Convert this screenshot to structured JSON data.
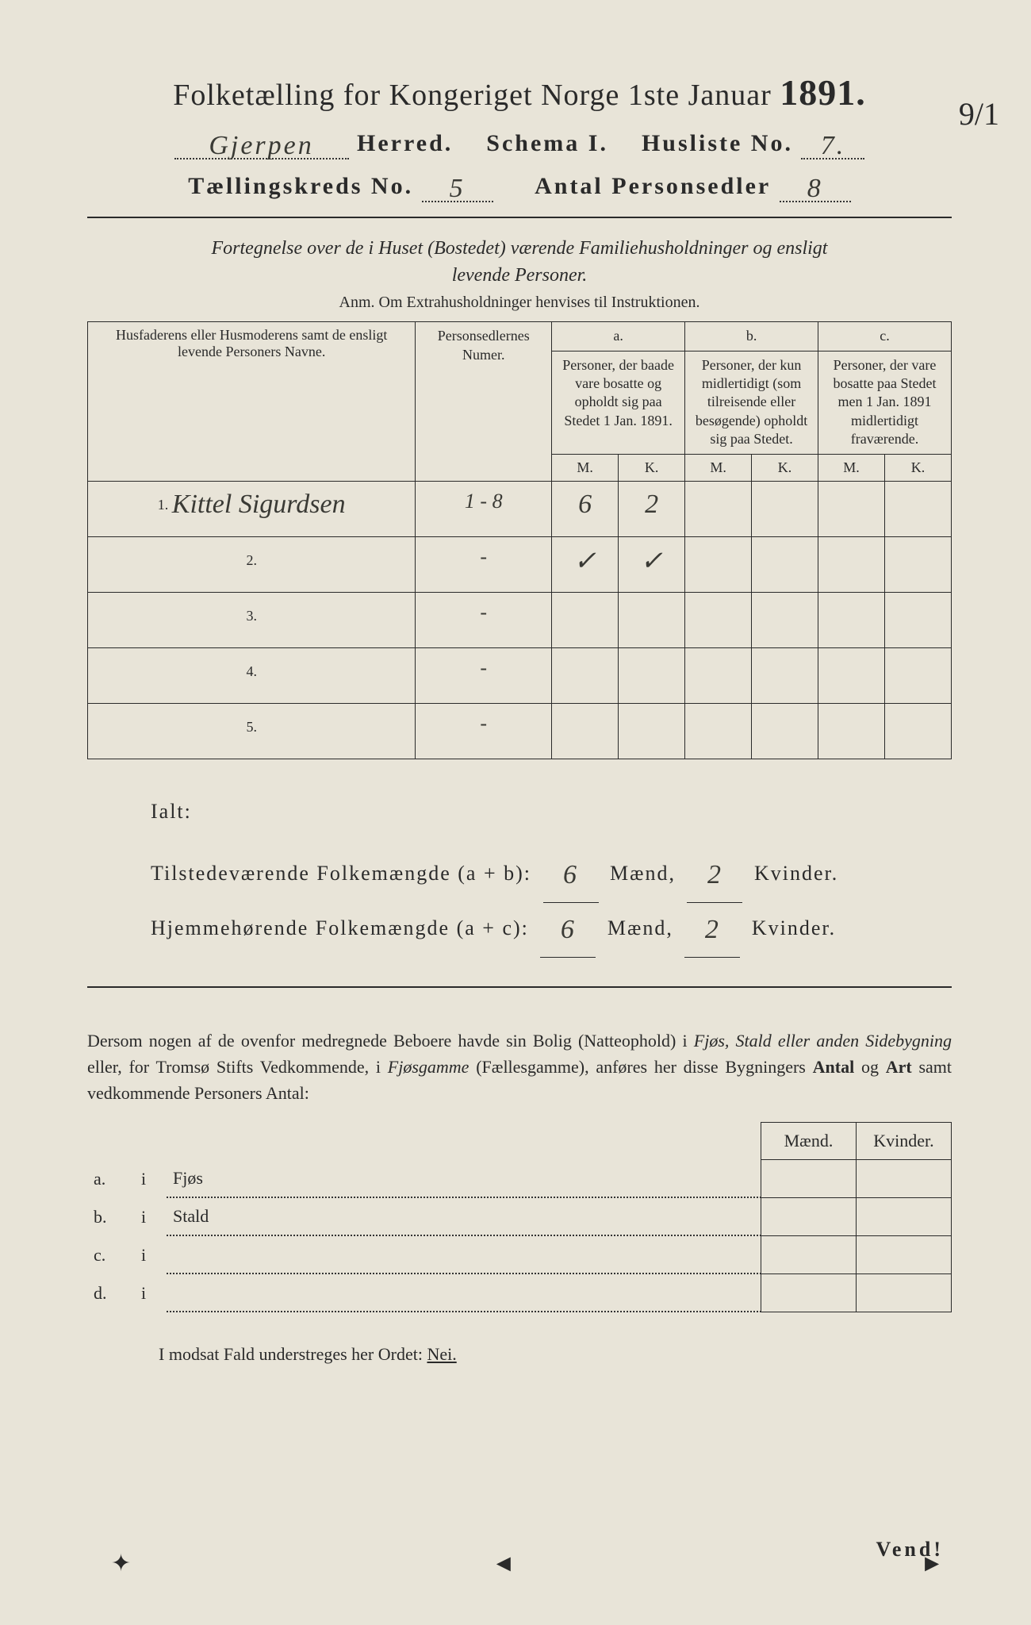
{
  "title": {
    "main": "Folketælling for Kongeriget Norge 1ste Januar",
    "year": "1891."
  },
  "header": {
    "herred_value": "Gjerpen",
    "herred_label": "Herred.",
    "schema_label": "Schema I.",
    "husliste_label": "Husliste No.",
    "husliste_value": "7.",
    "kreds_label": "Tællingskreds No.",
    "kreds_value": "5",
    "antal_label": "Antal Personsedler",
    "antal_value": "8",
    "margin_note": "9/1"
  },
  "desc_line1": "Fortegnelse over de i Huset (Bostedet) værende Familiehusholdninger og ensligt",
  "desc_line2": "levende Personer.",
  "anm": "Anm. Om Extrahusholdninger henvises til Instruktionen.",
  "table_headers": {
    "col1": "Husfaderens eller Husmoderens samt de ensligt levende Personers Navne.",
    "col2": "Personsedlernes Numer.",
    "a_label": "a.",
    "a_text": "Personer, der baade vare bosatte og opholdt sig paa Stedet 1 Jan. 1891.",
    "b_label": "b.",
    "b_text": "Personer, der kun midlertidigt (som tilreisende eller besøgende) opholdt sig paa Stedet.",
    "c_label": "c.",
    "c_text": "Personer, der vare bosatte paa Stedet men 1 Jan. 1891 midlertidigt fraværende.",
    "m": "M.",
    "k": "K."
  },
  "rows": [
    {
      "n": "1.",
      "name": "Kittel Sigurdsen",
      "num": "1 - 8",
      "a_m": "6",
      "a_k": "2",
      "b_m": "",
      "b_k": "",
      "c_m": "",
      "c_k": ""
    },
    {
      "n": "2.",
      "name": "",
      "num": "-",
      "a_m": "✓",
      "a_k": "✓",
      "b_m": "",
      "b_k": "",
      "c_m": "",
      "c_k": ""
    },
    {
      "n": "3.",
      "name": "",
      "num": "-",
      "a_m": "",
      "a_k": "",
      "b_m": "",
      "b_k": "",
      "c_m": "",
      "c_k": ""
    },
    {
      "n": "4.",
      "name": "",
      "num": "-",
      "a_m": "",
      "a_k": "",
      "b_m": "",
      "b_k": "",
      "c_m": "",
      "c_k": ""
    },
    {
      "n": "5.",
      "name": "",
      "num": "-",
      "a_m": "",
      "a_k": "",
      "b_m": "",
      "b_k": "",
      "c_m": "",
      "c_k": ""
    }
  ],
  "totals": {
    "ialt": "Ialt:",
    "line1_label": "Tilstedeværende Folkemængde (a + b):",
    "line1_m": "6",
    "line1_k": "2",
    "line2_label": "Hjemmehørende Folkemængde (a + c):",
    "line2_m": "6",
    "line2_k": "2",
    "maend": "Mænd,",
    "kvinder": "Kvinder."
  },
  "body_para": "Dersom nogen af de ovenfor medregnede Beboere havde sin Bolig (Natteophold) i Fjøs, Stald eller anden Sidebygning eller, for Tromsø Stifts Vedkommende, i Fjøsgamme (Fællesgamme), anføres her disse Bygningers Antal og Art samt vedkommende Personers Antal:",
  "sub_headers": {
    "maend": "Mænd.",
    "kvinder": "Kvinder."
  },
  "sub_rows": [
    {
      "l": "a.",
      "i": "i",
      "t": "Fjøs"
    },
    {
      "l": "b.",
      "i": "i",
      "t": "Stald"
    },
    {
      "l": "c.",
      "i": "i",
      "t": ""
    },
    {
      "l": "d.",
      "i": "i",
      "t": ""
    }
  ],
  "nei_line": "I modsat Fald understreges her Ordet:",
  "nei": "Nei.",
  "vend": "Vend!"
}
